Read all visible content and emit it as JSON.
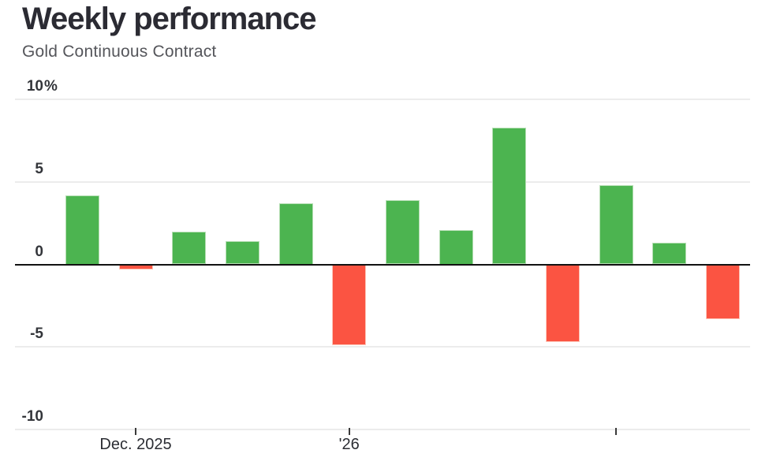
{
  "chart_data": {
    "type": "bar",
    "title": "Weekly performance",
    "subtitle": "Gold Continuous Contract",
    "unit": "%",
    "values": [
      4.2,
      -0.3,
      2.0,
      1.4,
      3.7,
      -4.9,
      3.9,
      2.1,
      8.3,
      -4.7,
      4.8,
      1.3,
      -3.3
    ],
    "ylim": [
      -10,
      10
    ],
    "grid": true,
    "y_ticks": [
      {
        "value": 10,
        "label": "10",
        "suffix": "%"
      },
      {
        "value": 5,
        "label": "5",
        "suffix": ""
      },
      {
        "value": 0,
        "label": "0",
        "suffix": ""
      },
      {
        "value": -5,
        "label": "-5",
        "suffix": ""
      },
      {
        "value": -10,
        "label": "-10",
        "suffix": ""
      }
    ],
    "x_ticks": [
      {
        "bar_index": 1,
        "label": "Dec. 2025"
      },
      {
        "bar_index": 5,
        "label": "'26"
      },
      {
        "bar_index": 10,
        "label": ""
      }
    ],
    "colors": {
      "positive": "#4cb450",
      "positive_border": "#b5deb3",
      "negative": "#fb5442",
      "negative_border": "#fdc5b8",
      "grid": "#ececec",
      "zero_line": "#111111",
      "title": "#2b2b33",
      "subtitle": "#55565b",
      "axis_label": "#33353a",
      "tick": "#3a3a3a"
    }
  }
}
